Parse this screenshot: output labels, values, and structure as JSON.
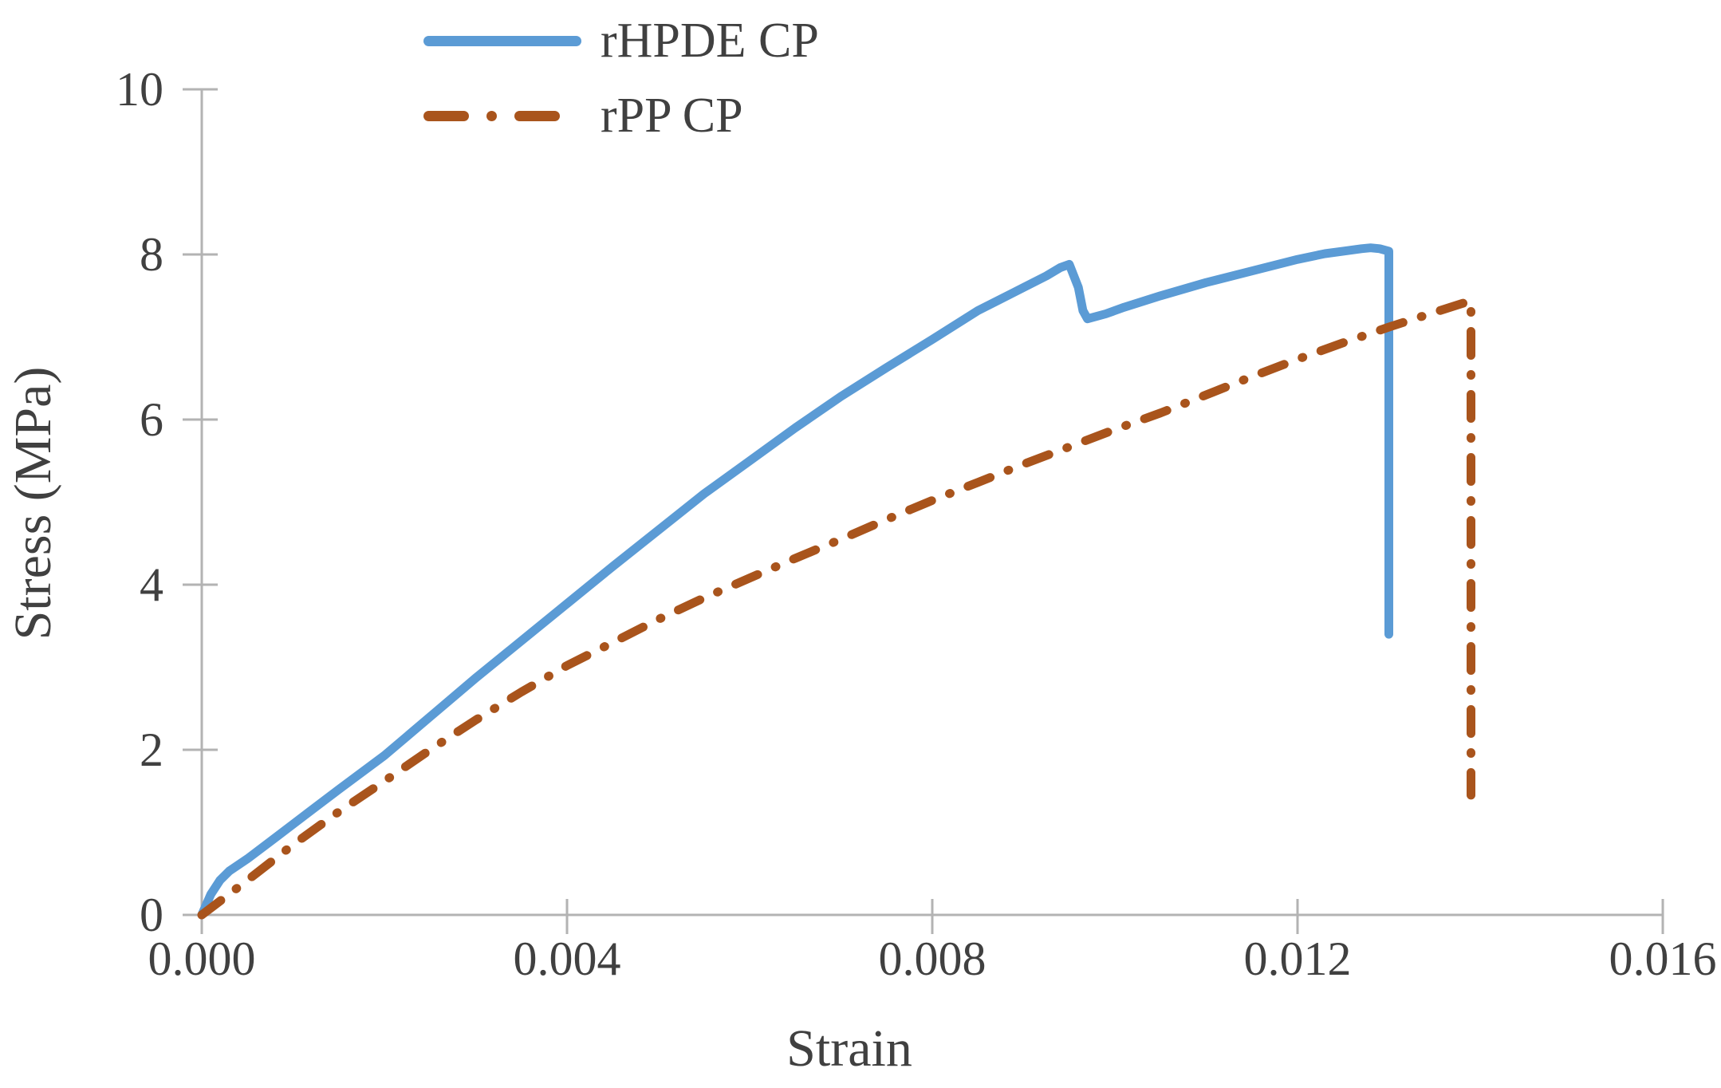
{
  "chart_data": {
    "type": "line",
    "title": "",
    "xlabel": "Strain",
    "ylabel": "Stress (MPa)",
    "xlim": [
      0,
      0.016
    ],
    "ylim": [
      0,
      10
    ],
    "x_ticks": [
      0,
      0.004,
      0.008,
      0.012,
      0.016
    ],
    "x_tick_labels": [
      "0.000",
      "0.004",
      "0.008",
      "0.012",
      "0.016"
    ],
    "y_ticks": [
      0,
      2,
      4,
      6,
      8,
      10
    ],
    "y_tick_labels": [
      "0",
      "2",
      "4",
      "6",
      "8",
      "10"
    ],
    "grid": false,
    "legend_position": "top-inside-left",
    "axis_color": "#b3b3b3",
    "text_color": "#404040",
    "series": [
      {
        "name": "rHPDE CP",
        "color": "#5B9BD5",
        "style": "solid",
        "points": [
          [
            0,
            0
          ],
          [
            0.0001,
            0.25
          ],
          [
            0.0002,
            0.42
          ],
          [
            0.0003,
            0.53
          ],
          [
            0.0005,
            0.68
          ],
          [
            0.0008,
            0.93
          ],
          [
            0.001,
            1.1
          ],
          [
            0.0015,
            1.52
          ],
          [
            0.002,
            1.93
          ],
          [
            0.0025,
            2.4
          ],
          [
            0.003,
            2.87
          ],
          [
            0.0035,
            3.32
          ],
          [
            0.004,
            3.77
          ],
          [
            0.0045,
            4.22
          ],
          [
            0.005,
            4.66
          ],
          [
            0.0055,
            5.1
          ],
          [
            0.006,
            5.5
          ],
          [
            0.0065,
            5.9
          ],
          [
            0.007,
            6.28
          ],
          [
            0.0075,
            6.63
          ],
          [
            0.008,
            6.97
          ],
          [
            0.0085,
            7.32
          ],
          [
            0.009,
            7.6
          ],
          [
            0.00925,
            7.74
          ],
          [
            0.0094,
            7.84
          ],
          [
            0.0095,
            7.88
          ],
          [
            0.0096,
            7.6
          ],
          [
            0.00965,
            7.32
          ],
          [
            0.0097,
            7.22
          ],
          [
            0.0099,
            7.28
          ],
          [
            0.0101,
            7.36
          ],
          [
            0.0105,
            7.5
          ],
          [
            0.011,
            7.66
          ],
          [
            0.0115,
            7.8
          ],
          [
            0.012,
            7.94
          ],
          [
            0.0123,
            8.01
          ],
          [
            0.0125,
            8.04
          ],
          [
            0.0127,
            8.07
          ],
          [
            0.0128,
            8.08
          ],
          [
            0.0129,
            8.07
          ],
          [
            0.013,
            8.04
          ],
          [
            0.013,
            3.4
          ]
        ]
      },
      {
        "name": "rPP CP",
        "color": "#A9541C",
        "style": "dash-dot",
        "points": [
          [
            0,
            0
          ],
          [
            0.0005,
            0.42
          ],
          [
            0.001,
            0.85
          ],
          [
            0.0015,
            1.25
          ],
          [
            0.002,
            1.62
          ],
          [
            0.0025,
            2.0
          ],
          [
            0.003,
            2.36
          ],
          [
            0.0035,
            2.7
          ],
          [
            0.004,
            3.02
          ],
          [
            0.0045,
            3.3
          ],
          [
            0.005,
            3.58
          ],
          [
            0.0055,
            3.84
          ],
          [
            0.006,
            4.08
          ],
          [
            0.0065,
            4.32
          ],
          [
            0.007,
            4.55
          ],
          [
            0.0075,
            4.79
          ],
          [
            0.008,
            5.02
          ],
          [
            0.0085,
            5.24
          ],
          [
            0.009,
            5.46
          ],
          [
            0.0095,
            5.67
          ],
          [
            0.01,
            5.88
          ],
          [
            0.0105,
            6.08
          ],
          [
            0.011,
            6.3
          ],
          [
            0.0115,
            6.52
          ],
          [
            0.012,
            6.73
          ],
          [
            0.0125,
            6.93
          ],
          [
            0.013,
            7.12
          ],
          [
            0.0135,
            7.3
          ],
          [
            0.0139,
            7.44
          ],
          [
            0.0139,
            1.45
          ]
        ]
      }
    ]
  }
}
